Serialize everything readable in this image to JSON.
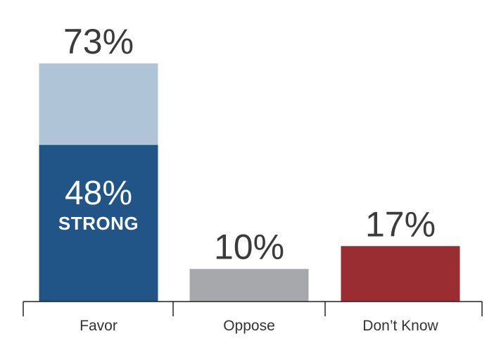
{
  "chart_data": {
    "type": "bar",
    "categories": [
      "Favor",
      "Oppose",
      "Don’t Know"
    ],
    "values": [
      73,
      10,
      17
    ],
    "value_labels": [
      "73%",
      "10%",
      "17%"
    ],
    "subset": {
      "category": "Favor",
      "value": 48,
      "value_label": "48%",
      "label": "STRONG"
    },
    "ylim": [
      0,
      80
    ],
    "grid": false,
    "colors": {
      "Favor": "#afc4d6",
      "Favor_strong": "#225587",
      "Oppose": "#a7a8ab",
      "Don’t Know": "#9a2d32"
    },
    "axis_color": "#222222"
  }
}
